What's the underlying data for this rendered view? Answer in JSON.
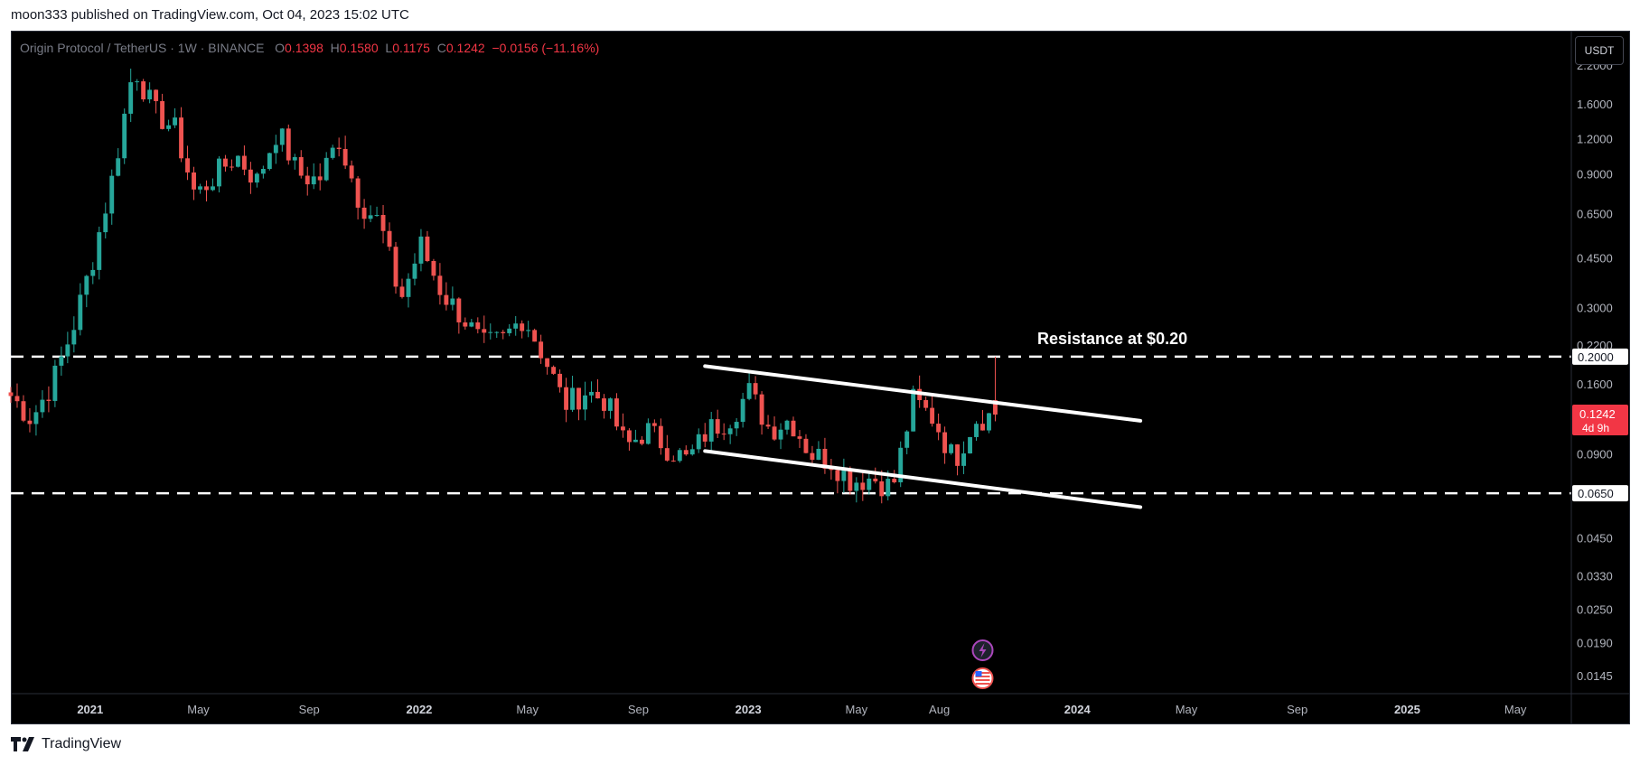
{
  "header": {
    "published_text": "moon333 published on TradingView.com, Oct 04, 2023 15:02 UTC"
  },
  "legend": {
    "symbol": "Origin Protocol / TetherUS · 1W · BINANCE",
    "o_label": "O",
    "o_value": "0.1398",
    "h_label": "H",
    "h_value": "0.1580",
    "l_label": "L",
    "l_value": "0.1175",
    "c_label": "C",
    "c_value": "0.1242",
    "change": "−0.0156 (−11.16%)"
  },
  "currency_button": "USDT",
  "price_axis": {
    "labels": [
      "2.2000",
      "1.6000",
      "1.2000",
      "0.9000",
      "0.6500",
      "0.4500",
      "0.3000",
      "0.2200",
      "0.1600",
      "0.0900",
      "0.0450",
      "0.0330",
      "0.0250",
      "0.0190",
      "0.0145"
    ],
    "values": [
      2.2,
      1.6,
      1.2,
      0.9,
      0.65,
      0.45,
      0.3,
      0.22,
      0.16,
      0.09,
      0.045,
      0.033,
      0.025,
      0.019,
      0.0145
    ],
    "resistance_label": "0.2000",
    "support_label": "0.0650",
    "current_price_label": "0.1242",
    "countdown_label": "4d 9h"
  },
  "time_axis": {
    "labels": [
      "2021",
      "May",
      "Sep",
      "2022",
      "May",
      "Sep",
      "2023",
      "May",
      "Aug",
      "2024",
      "May",
      "Sep",
      "2025",
      "May"
    ],
    "bold": [
      true,
      false,
      false,
      true,
      false,
      false,
      true,
      false,
      false,
      true,
      false,
      false,
      true,
      false
    ]
  },
  "annotations": {
    "resistance_text": "Resistance at $0.20"
  },
  "footer": {
    "brand": "TradingView"
  },
  "colors": {
    "background": "#000000",
    "up": "#26a69a",
    "down": "#ef5350",
    "drawing": "#ffffff",
    "axis_text": "#b2b5be",
    "current_price_bg": "#f23645"
  },
  "chart_data": {
    "type": "candlestick",
    "title": "Origin Protocol / TetherUS · 1W · BINANCE",
    "scale": "log",
    "ylim": [
      0.0125,
      2.9
    ],
    "x_range": [
      "2020-10-05",
      "2025-07-01"
    ],
    "levels": [
      {
        "name": "Resistance at $0.20",
        "value": 0.2,
        "style": "dashed"
      },
      {
        "value": 0.065,
        "style": "dashed"
      }
    ],
    "channel": {
      "upper": {
        "from": [
          "2022-11-14",
          0.185
        ],
        "to": [
          "2024-03-11",
          0.118
        ]
      },
      "lower": {
        "from": [
          "2022-11-14",
          0.092
        ],
        "to": [
          "2024-03-11",
          0.058
        ]
      }
    },
    "series": [
      {
        "values": [
          0.145,
          0.12,
          0.16,
          0.25,
          0.45,
          0.9,
          2.2,
          1.5,
          1.3,
          0.75,
          0.9,
          1.05,
          0.85,
          1.3,
          0.9,
          0.85,
          1.2,
          0.72,
          0.6,
          0.32,
          0.5,
          0.34,
          0.28,
          0.22,
          0.23,
          0.28,
          0.2,
          0.135,
          0.15,
          0.14,
          0.095,
          0.11,
          0.095,
          0.085,
          0.11,
          0.12,
          0.15,
          0.11,
          0.12,
          0.09,
          0.085,
          0.072,
          0.074,
          0.068,
          0.14,
          0.12,
          0.085,
          0.12,
          0.1242
        ]
      }
    ]
  }
}
